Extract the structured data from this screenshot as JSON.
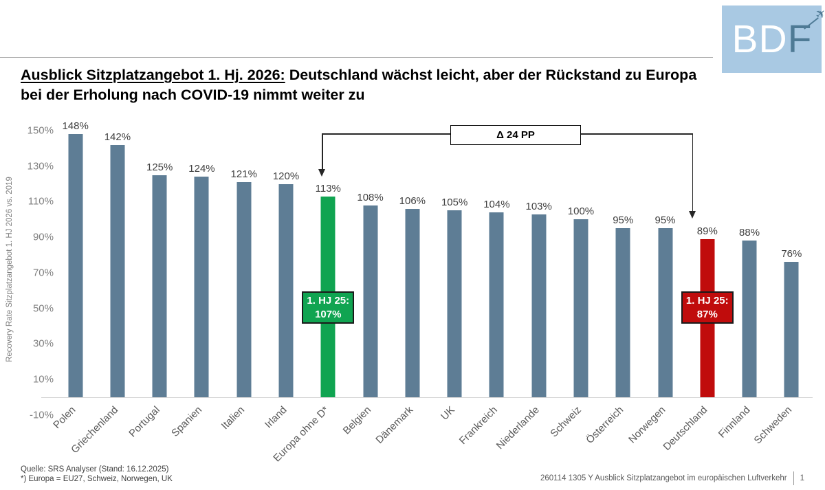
{
  "logo": {
    "text_bd": "BD",
    "text_f": "F",
    "bg_color": "#a9c9e3",
    "accent_color": "#4e7a95",
    "plane_icon": "airplane-arrow"
  },
  "title": {
    "lead": "Ausblick Sitzplatzangebot 1. Hj. 2026:",
    "rest": "Deutschland wächst leicht, aber der Rückstand zu Europa bei der Erholung nach COVID-19 nimmt weiter zu"
  },
  "chart_data": {
    "type": "bar",
    "title": "",
    "xlabel": "",
    "ylabel": "Recovery Rate Sitzplatzangebot 1. HJ 2026 vs. 2019",
    "ylim": [
      -10,
      150
    ],
    "ytick_values": [
      150,
      130,
      110,
      90,
      70,
      50,
      30,
      10,
      -10
    ],
    "ytick_suffix": "%",
    "grid": false,
    "legend": "none",
    "categories": [
      "Polen",
      "Griechenland",
      "Portugal",
      "Spanien",
      "Italien",
      "Irland",
      "Europa ohne D*",
      "Belgien",
      "Dänemark",
      "UK",
      "Frankreich",
      "Niederlande",
      "Schweiz",
      "Österreich",
      "Norwegen",
      "Deutschland",
      "Finnland",
      "Schweden"
    ],
    "values": [
      148,
      142,
      125,
      124,
      121,
      120,
      113,
      108,
      106,
      105,
      104,
      103,
      100,
      95,
      95,
      89,
      88,
      76
    ],
    "value_label_suffix": "%",
    "colors": {
      "default_bar": "#5e7d95",
      "green_highlight": "#10a451",
      "red_highlight": "#c00c0c"
    },
    "highlights": {
      "green_index": 6,
      "red_index": 15
    },
    "callouts": [
      {
        "index": 6,
        "line1": "1. HJ 25:",
        "line2": "107%",
        "color": "#10a451"
      },
      {
        "index": 15,
        "line1": "1. HJ 25:",
        "line2": "87%",
        "color": "#c00c0c"
      }
    ],
    "delta_annotation": {
      "label": "Δ 24 PP",
      "from_category": "Europa ohne D*",
      "to_category": "Deutschland",
      "from_index": 6,
      "to_index": 15
    }
  },
  "footer": {
    "source_line1": "Quelle: SRS Analyser (Stand: 16.12.2025)",
    "source_line2": "*) Europa = EU27, Schweiz, Norwegen, UK",
    "doc_ref": "260114 1305 Y Ausblick Sitzplatzangebot im europäischen Luftverkehr",
    "page_number": "1"
  }
}
